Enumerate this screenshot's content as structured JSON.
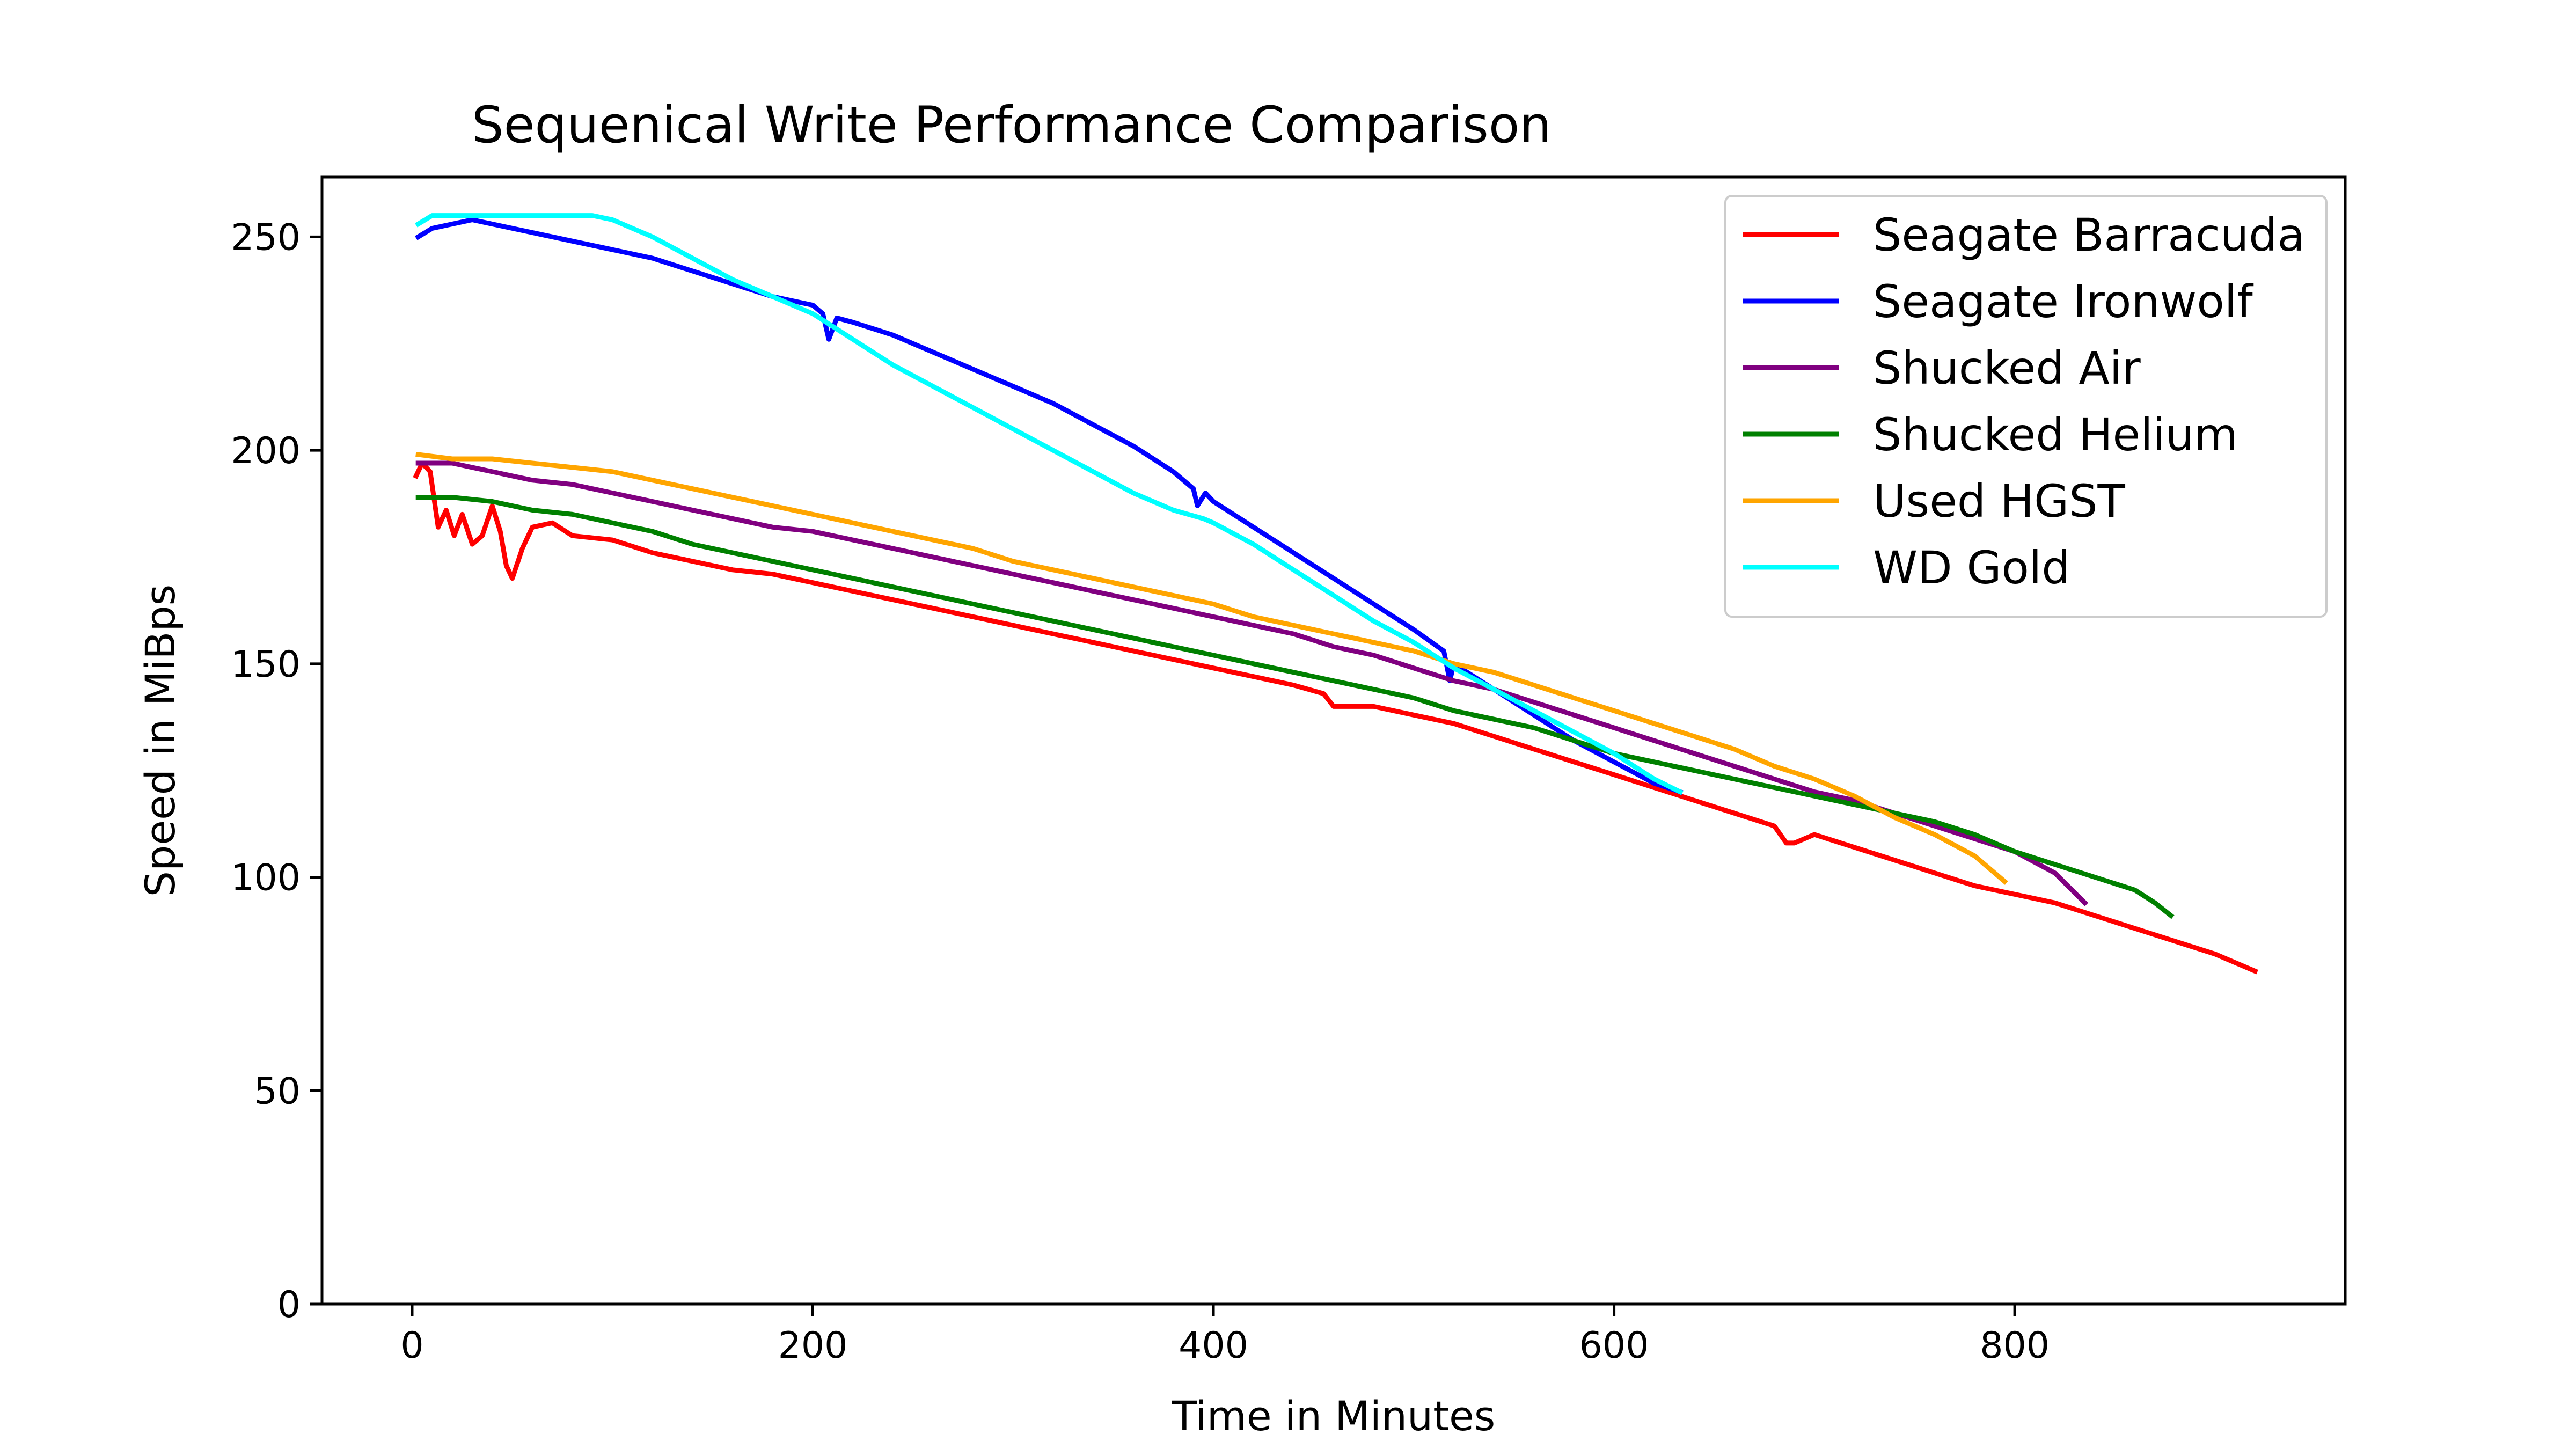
{
  "chart_data": {
    "type": "line",
    "title": "Sequenical Write Performance Comparison",
    "xlabel": "Time in Minutes",
    "ylabel": "Speed in MiBps",
    "xlim": [
      -45,
      965
    ],
    "ylim": [
      0,
      264
    ],
    "xticks": [
      0,
      200,
      400,
      600,
      800
    ],
    "yticks": [
      0,
      50,
      100,
      150,
      200,
      250
    ],
    "legend_position": "top-right",
    "grid": false,
    "series": [
      {
        "name": "Seagate Barracuda",
        "color": "#ff0000",
        "x": [
          2,
          5,
          9,
          13,
          17,
          21,
          25,
          30,
          35,
          40,
          44,
          47,
          50,
          55,
          60,
          70,
          80,
          100,
          120,
          140,
          160,
          180,
          200,
          220,
          240,
          260,
          280,
          300,
          320,
          340,
          360,
          380,
          400,
          420,
          440,
          455,
          460,
          480,
          500,
          520,
          540,
          560,
          580,
          600,
          620,
          640,
          660,
          680,
          686,
          690,
          700,
          720,
          740,
          760,
          780,
          800,
          820,
          840,
          860,
          880,
          900,
          920
        ],
        "y": [
          194,
          197,
          195,
          182,
          186,
          180,
          185,
          178,
          180,
          187,
          181,
          173,
          170,
          177,
          182,
          183,
          180,
          179,
          176,
          174,
          172,
          171,
          169,
          167,
          165,
          163,
          161,
          159,
          157,
          155,
          153,
          151,
          149,
          147,
          145,
          143,
          140,
          140,
          138,
          136,
          133,
          130,
          127,
          124,
          121,
          118,
          115,
          112,
          108,
          108,
          110,
          107,
          104,
          101,
          98,
          96,
          94,
          91,
          88,
          85,
          82,
          78
        ]
      },
      {
        "name": "Seagate Ironwolf",
        "color": "#0000ff",
        "x": [
          3,
          10,
          20,
          30,
          40,
          60,
          80,
          100,
          120,
          140,
          160,
          180,
          200,
          205,
          208,
          212,
          220,
          240,
          260,
          280,
          300,
          320,
          340,
          360,
          380,
          390,
          392,
          396,
          400,
          420,
          440,
          460,
          480,
          500,
          515,
          518,
          520,
          530,
          540,
          560,
          580,
          600,
          620,
          633
        ],
        "y": [
          250,
          252,
          253,
          254,
          253,
          251,
          249,
          247,
          245,
          242,
          239,
          236,
          234,
          232,
          226,
          231,
          230,
          227,
          223,
          219,
          215,
          211,
          206,
          201,
          195,
          191,
          187,
          190,
          188,
          182,
          176,
          170,
          164,
          158,
          153,
          146,
          150,
          147,
          144,
          138,
          132,
          127,
          122,
          120
        ]
      },
      {
        "name": "Shucked Air",
        "color": "#800080",
        "x": [
          3,
          20,
          40,
          60,
          80,
          100,
          120,
          140,
          160,
          180,
          200,
          220,
          240,
          260,
          280,
          300,
          320,
          340,
          360,
          380,
          400,
          420,
          440,
          460,
          480,
          500,
          520,
          540,
          560,
          580,
          600,
          620,
          640,
          660,
          680,
          700,
          720,
          740,
          760,
          780,
          800,
          820,
          835
        ],
        "y": [
          197,
          197,
          195,
          193,
          192,
          190,
          188,
          186,
          184,
          182,
          181,
          179,
          177,
          175,
          173,
          171,
          169,
          167,
          165,
          163,
          161,
          159,
          157,
          154,
          152,
          149,
          146,
          144,
          141,
          138,
          135,
          132,
          129,
          126,
          123,
          120,
          118,
          115,
          112,
          109,
          106,
          101,
          94
        ]
      },
      {
        "name": "Shucked Helium",
        "color": "#008000",
        "x": [
          3,
          20,
          40,
          60,
          80,
          100,
          120,
          140,
          160,
          180,
          200,
          220,
          240,
          260,
          280,
          300,
          320,
          340,
          360,
          380,
          400,
          420,
          440,
          460,
          480,
          500,
          520,
          540,
          560,
          580,
          600,
          620,
          640,
          660,
          680,
          700,
          720,
          740,
          760,
          780,
          800,
          820,
          840,
          860,
          870,
          878
        ],
        "y": [
          189,
          189,
          188,
          186,
          185,
          183,
          181,
          178,
          176,
          174,
          172,
          170,
          168,
          166,
          164,
          162,
          160,
          158,
          156,
          154,
          152,
          150,
          148,
          146,
          144,
          142,
          139,
          137,
          135,
          132,
          129,
          127,
          125,
          123,
          121,
          119,
          117,
          115,
          113,
          110,
          106,
          103,
          100,
          97,
          94,
          91
        ]
      },
      {
        "name": "Used HGST",
        "color": "#ffa500",
        "x": [
          3,
          20,
          40,
          60,
          80,
          100,
          120,
          140,
          160,
          180,
          200,
          220,
          240,
          260,
          280,
          300,
          320,
          340,
          360,
          380,
          400,
          420,
          440,
          460,
          480,
          500,
          520,
          540,
          560,
          580,
          600,
          620,
          640,
          660,
          680,
          700,
          720,
          740,
          760,
          780,
          795
        ],
        "y": [
          199,
          198,
          198,
          197,
          196,
          195,
          193,
          191,
          189,
          187,
          185,
          183,
          181,
          179,
          177,
          174,
          172,
          170,
          168,
          166,
          164,
          161,
          159,
          157,
          155,
          153,
          150,
          148,
          145,
          142,
          139,
          136,
          133,
          130,
          126,
          123,
          119,
          114,
          110,
          105,
          99
        ]
      },
      {
        "name": "WD Gold",
        "color": "#00ffff",
        "x": [
          3,
          10,
          20,
          40,
          60,
          80,
          90,
          100,
          110,
          120,
          140,
          160,
          180,
          200,
          220,
          240,
          260,
          280,
          300,
          320,
          340,
          360,
          380,
          395,
          400,
          420,
          440,
          460,
          480,
          500,
          520,
          540,
          560,
          580,
          600,
          620,
          633
        ],
        "y": [
          253,
          255,
          255,
          255,
          255,
          255,
          255,
          254,
          252,
          250,
          245,
          240,
          236,
          232,
          226,
          220,
          215,
          210,
          205,
          200,
          195,
          190,
          186,
          184,
          183,
          178,
          172,
          166,
          160,
          155,
          149,
          144,
          139,
          134,
          129,
          123,
          120
        ]
      }
    ]
  }
}
